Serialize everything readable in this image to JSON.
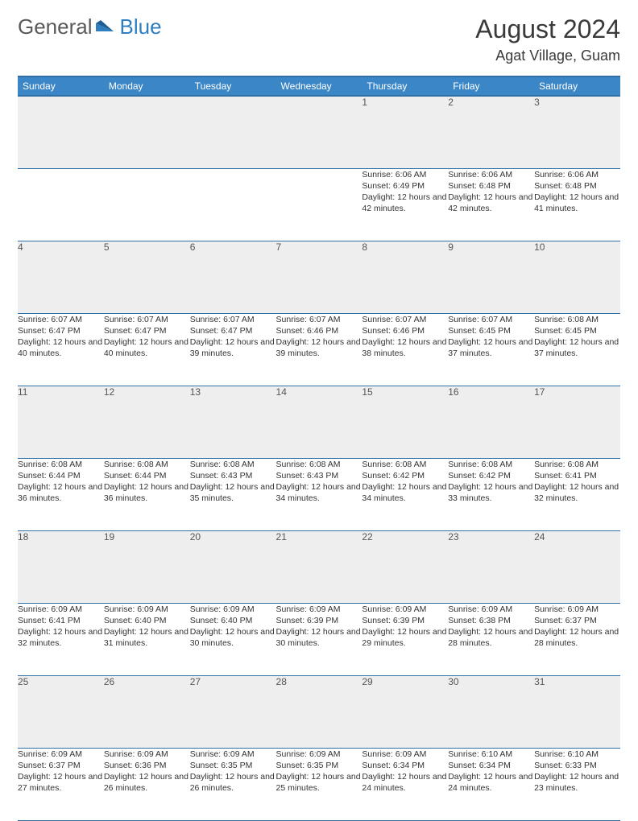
{
  "logo": {
    "word1": "General",
    "word2": "Blue"
  },
  "title": "August 2024",
  "location": "Agat Village, Guam",
  "colors": {
    "header_bg": "#3b86c6",
    "header_border": "#2f6fa3",
    "daynum_bg": "#eeeeee",
    "logo_gray": "#5a5a5a",
    "logo_blue": "#2f7ec0",
    "text": "#333333"
  },
  "day_headers": [
    "Sunday",
    "Monday",
    "Tuesday",
    "Wednesday",
    "Thursday",
    "Friday",
    "Saturday"
  ],
  "weeks": [
    {
      "nums": [
        "",
        "",
        "",
        "",
        "1",
        "2",
        "3"
      ],
      "details": [
        null,
        null,
        null,
        null,
        {
          "sunrise": "6:06 AM",
          "sunset": "6:49 PM",
          "dl": "12 hours and 42 minutes."
        },
        {
          "sunrise": "6:06 AM",
          "sunset": "6:48 PM",
          "dl": "12 hours and 42 minutes."
        },
        {
          "sunrise": "6:06 AM",
          "sunset": "6:48 PM",
          "dl": "12 hours and 41 minutes."
        }
      ]
    },
    {
      "nums": [
        "4",
        "5",
        "6",
        "7",
        "8",
        "9",
        "10"
      ],
      "details": [
        {
          "sunrise": "6:07 AM",
          "sunset": "6:47 PM",
          "dl": "12 hours and 40 minutes."
        },
        {
          "sunrise": "6:07 AM",
          "sunset": "6:47 PM",
          "dl": "12 hours and 40 minutes."
        },
        {
          "sunrise": "6:07 AM",
          "sunset": "6:47 PM",
          "dl": "12 hours and 39 minutes."
        },
        {
          "sunrise": "6:07 AM",
          "sunset": "6:46 PM",
          "dl": "12 hours and 39 minutes."
        },
        {
          "sunrise": "6:07 AM",
          "sunset": "6:46 PM",
          "dl": "12 hours and 38 minutes."
        },
        {
          "sunrise": "6:07 AM",
          "sunset": "6:45 PM",
          "dl": "12 hours and 37 minutes."
        },
        {
          "sunrise": "6:08 AM",
          "sunset": "6:45 PM",
          "dl": "12 hours and 37 minutes."
        }
      ]
    },
    {
      "nums": [
        "11",
        "12",
        "13",
        "14",
        "15",
        "16",
        "17"
      ],
      "details": [
        {
          "sunrise": "6:08 AM",
          "sunset": "6:44 PM",
          "dl": "12 hours and 36 minutes."
        },
        {
          "sunrise": "6:08 AM",
          "sunset": "6:44 PM",
          "dl": "12 hours and 36 minutes."
        },
        {
          "sunrise": "6:08 AM",
          "sunset": "6:43 PM",
          "dl": "12 hours and 35 minutes."
        },
        {
          "sunrise": "6:08 AM",
          "sunset": "6:43 PM",
          "dl": "12 hours and 34 minutes."
        },
        {
          "sunrise": "6:08 AM",
          "sunset": "6:42 PM",
          "dl": "12 hours and 34 minutes."
        },
        {
          "sunrise": "6:08 AM",
          "sunset": "6:42 PM",
          "dl": "12 hours and 33 minutes."
        },
        {
          "sunrise": "6:08 AM",
          "sunset": "6:41 PM",
          "dl": "12 hours and 32 minutes."
        }
      ]
    },
    {
      "nums": [
        "18",
        "19",
        "20",
        "21",
        "22",
        "23",
        "24"
      ],
      "details": [
        {
          "sunrise": "6:09 AM",
          "sunset": "6:41 PM",
          "dl": "12 hours and 32 minutes."
        },
        {
          "sunrise": "6:09 AM",
          "sunset": "6:40 PM",
          "dl": "12 hours and 31 minutes."
        },
        {
          "sunrise": "6:09 AM",
          "sunset": "6:40 PM",
          "dl": "12 hours and 30 minutes."
        },
        {
          "sunrise": "6:09 AM",
          "sunset": "6:39 PM",
          "dl": "12 hours and 30 minutes."
        },
        {
          "sunrise": "6:09 AM",
          "sunset": "6:39 PM",
          "dl": "12 hours and 29 minutes."
        },
        {
          "sunrise": "6:09 AM",
          "sunset": "6:38 PM",
          "dl": "12 hours and 28 minutes."
        },
        {
          "sunrise": "6:09 AM",
          "sunset": "6:37 PM",
          "dl": "12 hours and 28 minutes."
        }
      ]
    },
    {
      "nums": [
        "25",
        "26",
        "27",
        "28",
        "29",
        "30",
        "31"
      ],
      "details": [
        {
          "sunrise": "6:09 AM",
          "sunset": "6:37 PM",
          "dl": "12 hours and 27 minutes."
        },
        {
          "sunrise": "6:09 AM",
          "sunset": "6:36 PM",
          "dl": "12 hours and 26 minutes."
        },
        {
          "sunrise": "6:09 AM",
          "sunset": "6:35 PM",
          "dl": "12 hours and 26 minutes."
        },
        {
          "sunrise": "6:09 AM",
          "sunset": "6:35 PM",
          "dl": "12 hours and 25 minutes."
        },
        {
          "sunrise": "6:09 AM",
          "sunset": "6:34 PM",
          "dl": "12 hours and 24 minutes."
        },
        {
          "sunrise": "6:10 AM",
          "sunset": "6:34 PM",
          "dl": "12 hours and 24 minutes."
        },
        {
          "sunrise": "6:10 AM",
          "sunset": "6:33 PM",
          "dl": "12 hours and 23 minutes."
        }
      ]
    }
  ],
  "labels": {
    "sunrise": "Sunrise:",
    "sunset": "Sunset:",
    "daylight": "Daylight:"
  }
}
